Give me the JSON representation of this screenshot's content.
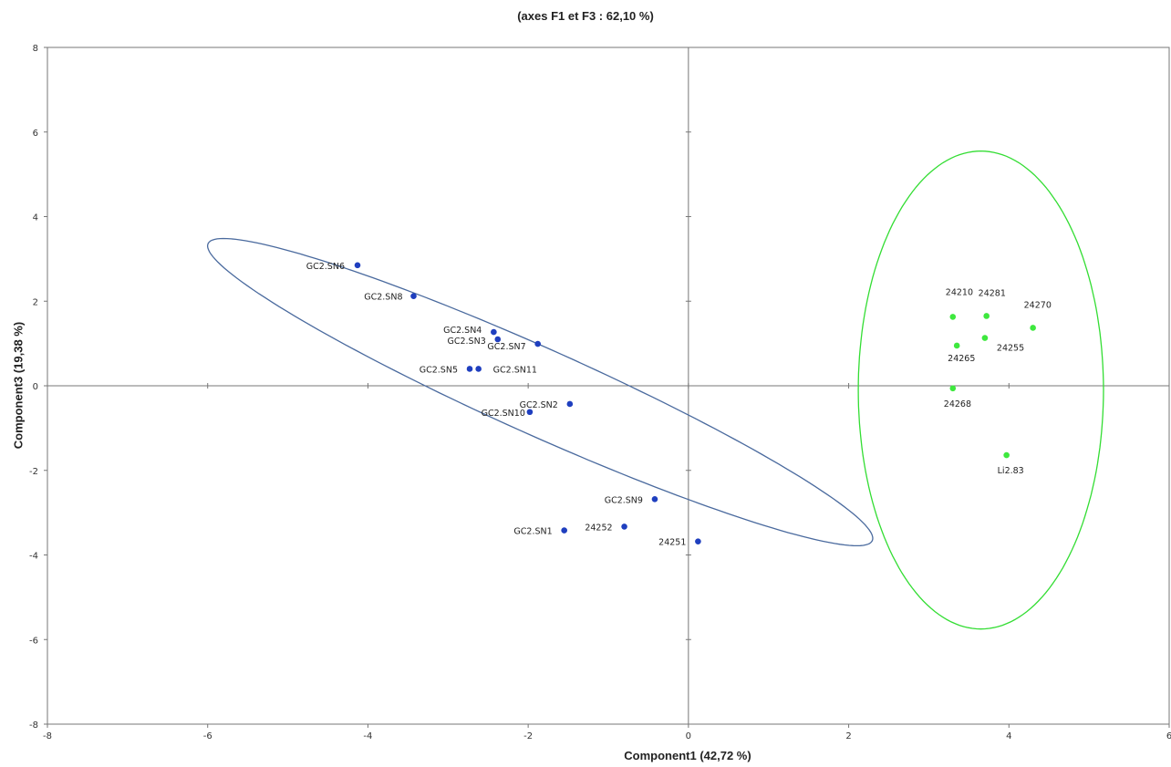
{
  "chart_data": {
    "type": "scatter",
    "title": "(axes F1  et F3 : 62,10 %)",
    "xlabel": "Component1 (42,72 %)",
    "ylabel": "Component3 (19,38 %)",
    "xlim": [
      -8,
      6
    ],
    "ylim": [
      -8,
      8
    ],
    "xticks": [
      -8,
      -6,
      -4,
      -2,
      0,
      2,
      4,
      6
    ],
    "yticks": [
      -8,
      -6,
      -4,
      -2,
      0,
      2,
      4,
      6,
      8
    ],
    "grid": false,
    "colors": {
      "group1": "#1f3fbf",
      "group2": "#3ee83e",
      "ellipse1": "#4a6a9e",
      "ellipse2": "#33dd33",
      "axis": "#777777"
    },
    "series": [
      {
        "color_key": "group1",
        "points": [
          {
            "label": "GC2.SN6",
            "x": -4.13,
            "y": 2.85
          },
          {
            "label": "GC2.SN8",
            "x": -3.43,
            "y": 2.12
          },
          {
            "label": "GC2.SN4",
            "x": -2.43,
            "y": 1.27
          },
          {
            "label": "GC2.SN3",
            "x": -2.38,
            "y": 1.1
          },
          {
            "label": "GC2.SN7",
            "x": -1.88,
            "y": 0.99
          },
          {
            "label": "GC2.SN5",
            "x": -2.73,
            "y": 0.4
          },
          {
            "label": "GC2.SN11",
            "x": -2.62,
            "y": 0.4
          },
          {
            "label": "GC2.SN2",
            "x": -1.48,
            "y": -0.43
          },
          {
            "label": "GC2.SN10",
            "x": -1.98,
            "y": -0.62
          },
          {
            "label": "GC2.SN9",
            "x": -0.42,
            "y": -2.68
          },
          {
            "label": "24252",
            "x": -0.8,
            "y": -3.33
          },
          {
            "label": "GC2.SN1",
            "x": -1.55,
            "y": -3.42
          },
          {
            "label": "24251",
            "x": 0.12,
            "y": -3.68
          }
        ]
      },
      {
        "color_key": "group2",
        "points": [
          {
            "label": "24210",
            "x": 3.3,
            "y": 1.63
          },
          {
            "label": "24281",
            "x": 3.72,
            "y": 1.65
          },
          {
            "label": "24270",
            "x": 4.3,
            "y": 1.37
          },
          {
            "label": "24265",
            "x": 3.35,
            "y": 0.95
          },
          {
            "label": "24255",
            "x": 3.7,
            "y": 1.13
          },
          {
            "label": "24268",
            "x": 3.3,
            "y": -0.06
          },
          {
            "label": "Li2.83",
            "x": 3.97,
            "y": -1.64
          }
        ]
      }
    ],
    "ellipses": [
      {
        "color_key": "ellipse1",
        "cx": -1.85,
        "cy": -0.15,
        "rx": 5.45,
        "ry": 0.85,
        "angle_deg": -41
      },
      {
        "color_key": "ellipse2",
        "cx": 3.65,
        "cy": -0.1,
        "rx": 1.53,
        "ry": 5.65,
        "angle_deg": 0
      }
    ]
  }
}
